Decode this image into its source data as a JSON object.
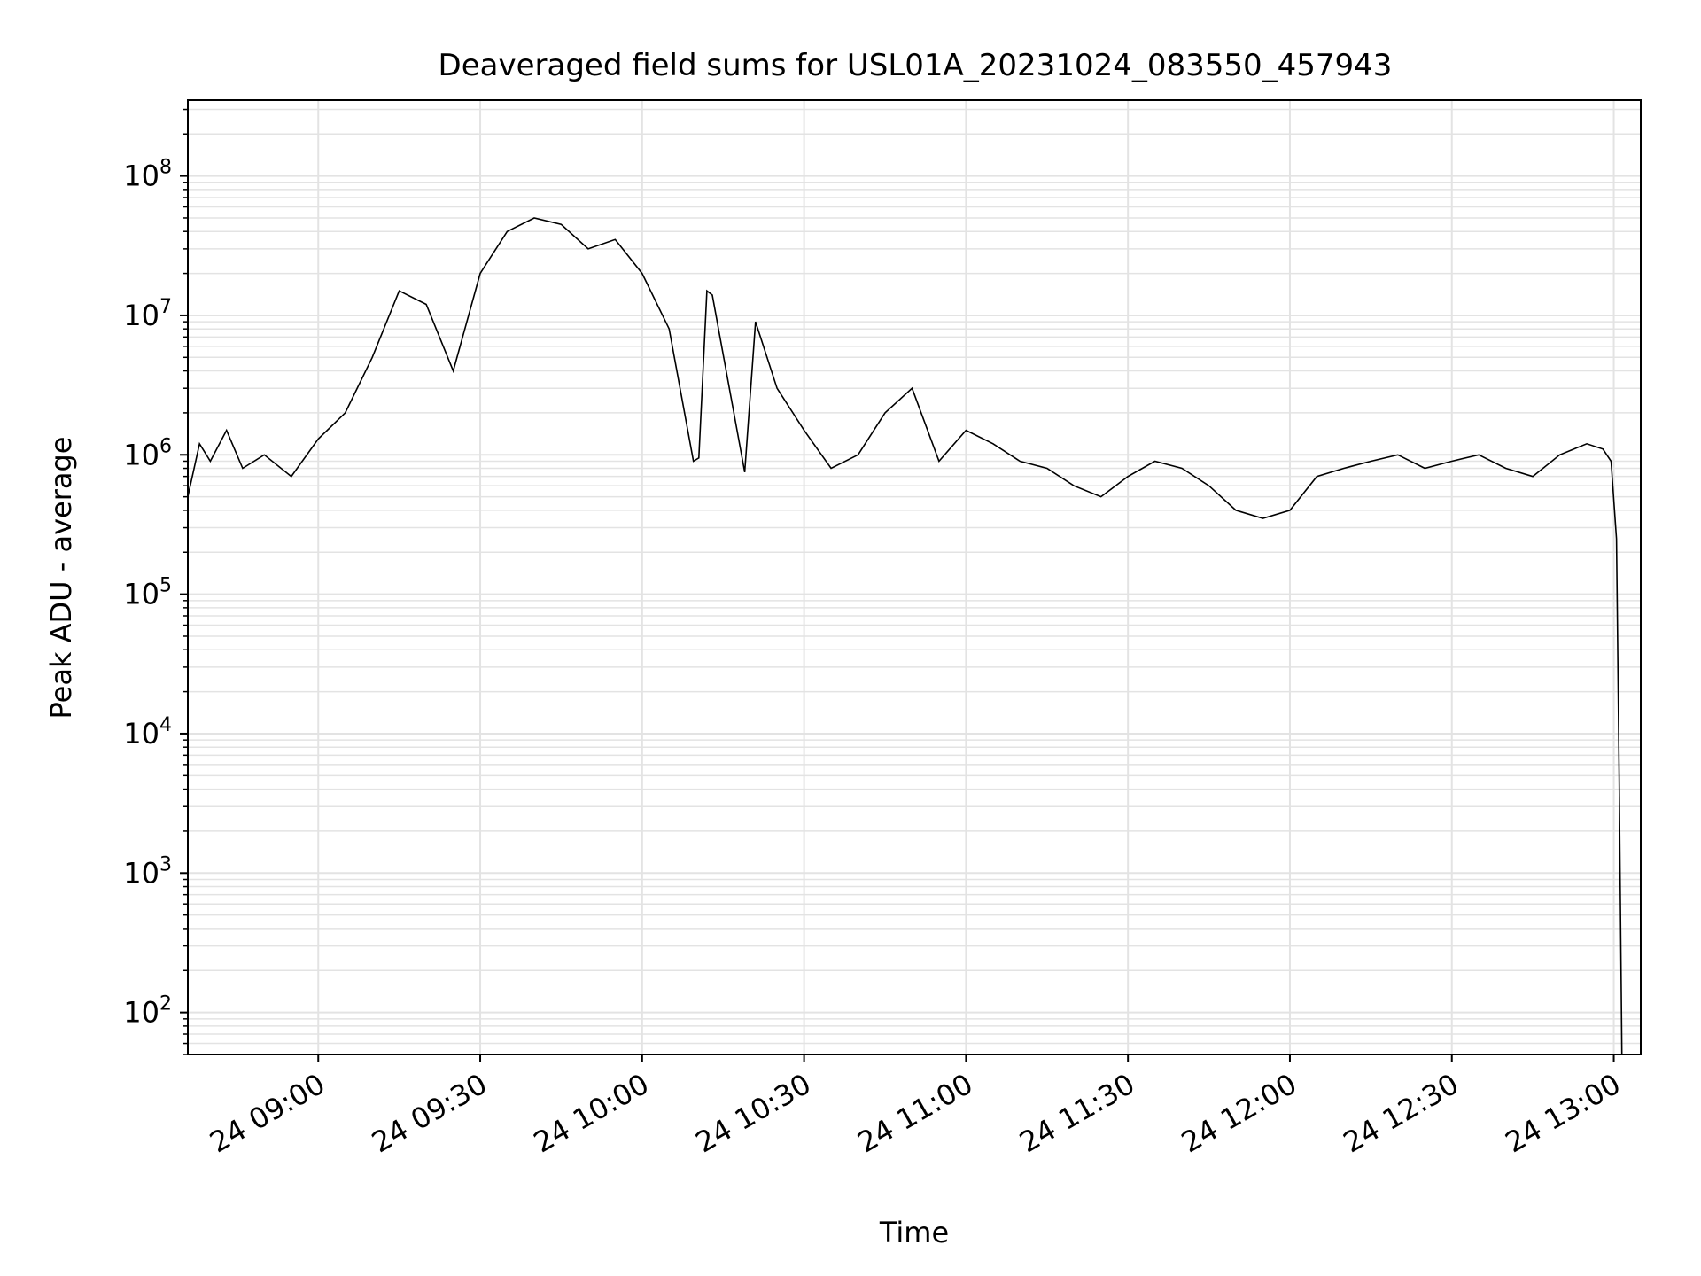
{
  "chart_data": {
    "type": "line",
    "title": "Deaveraged field sums for USL01A_20231024_083550_457943",
    "xlabel": "Time",
    "ylabel": "Peak ADU - average",
    "yscale": "log",
    "ylim": [
      50,
      350000000
    ],
    "xlim": [
      "2023-10-24 08:35:50",
      "2023-10-24 13:05:00"
    ],
    "grid": true,
    "line_color": "#000000",
    "x_ticks": [
      {
        "value": "2023-10-24 09:00",
        "label": "24 09:00"
      },
      {
        "value": "2023-10-24 09:30",
        "label": "24 09:30"
      },
      {
        "value": "2023-10-24 10:00",
        "label": "24 10:00"
      },
      {
        "value": "2023-10-24 10:30",
        "label": "24 10:30"
      },
      {
        "value": "2023-10-24 11:00",
        "label": "24 11:00"
      },
      {
        "value": "2023-10-24 11:30",
        "label": "24 11:30"
      },
      {
        "value": "2023-10-24 12:00",
        "label": "24 12:00"
      },
      {
        "value": "2023-10-24 12:30",
        "label": "24 12:30"
      },
      {
        "value": "2023-10-24 13:00",
        "label": "24 13:00"
      }
    ],
    "y_ticks": [
      {
        "value": 100,
        "base": "10",
        "exp": "2"
      },
      {
        "value": 1000,
        "base": "10",
        "exp": "3"
      },
      {
        "value": 10000,
        "base": "10",
        "exp": "4"
      },
      {
        "value": 100000,
        "base": "10",
        "exp": "5"
      },
      {
        "value": 1000000,
        "base": "10",
        "exp": "6"
      },
      {
        "value": 10000000,
        "base": "10",
        "exp": "7"
      },
      {
        "value": 100000000,
        "base": "10",
        "exp": "8"
      }
    ],
    "series": [
      {
        "x": [
          "2023-10-24 08:35:50",
          "2023-10-24 08:38:00",
          "2023-10-24 08:40:00",
          "2023-10-24 08:43:00",
          "2023-10-24 08:46:00",
          "2023-10-24 08:50:00",
          "2023-10-24 08:55:00",
          "2023-10-24 09:00:00",
          "2023-10-24 09:05:00",
          "2023-10-24 09:10:00",
          "2023-10-24 09:15:00",
          "2023-10-24 09:20:00",
          "2023-10-24 09:25:00",
          "2023-10-24 09:30:00",
          "2023-10-24 09:35:00",
          "2023-10-24 09:40:00",
          "2023-10-24 09:45:00",
          "2023-10-24 09:50:00",
          "2023-10-24 09:55:00",
          "2023-10-24 10:00:00",
          "2023-10-24 10:05:00",
          "2023-10-24 10:09:30",
          "2023-10-24 10:10:30",
          "2023-10-24 10:12:00",
          "2023-10-24 10:13:00",
          "2023-10-24 10:19:00",
          "2023-10-24 10:21:00",
          "2023-10-24 10:25:00",
          "2023-10-24 10:30:00",
          "2023-10-24 10:35:00",
          "2023-10-24 10:40:00",
          "2023-10-24 10:45:00",
          "2023-10-24 10:50:00",
          "2023-10-24 10:55:00",
          "2023-10-24 11:00:00",
          "2023-10-24 11:05:00",
          "2023-10-24 11:10:00",
          "2023-10-24 11:15:00",
          "2023-10-24 11:20:00",
          "2023-10-24 11:25:00",
          "2023-10-24 11:30:00",
          "2023-10-24 11:35:00",
          "2023-10-24 11:40:00",
          "2023-10-24 11:45:00",
          "2023-10-24 11:50:00",
          "2023-10-24 11:55:00",
          "2023-10-24 12:00:00",
          "2023-10-24 12:05:00",
          "2023-10-24 12:10:00",
          "2023-10-24 12:15:00",
          "2023-10-24 12:20:00",
          "2023-10-24 12:25:00",
          "2023-10-24 12:30:00",
          "2023-10-24 12:35:00",
          "2023-10-24 12:40:00",
          "2023-10-24 12:45:00",
          "2023-10-24 12:50:00",
          "2023-10-24 12:55:00",
          "2023-10-24 12:58:00",
          "2023-10-24 12:59:30",
          "2023-10-24 13:00:30",
          "2023-10-24 13:01:00",
          "2023-10-24 13:01:30"
        ],
        "y": [
          500000,
          1200000,
          900000,
          1500000,
          800000,
          1000000,
          700000,
          1300000,
          2000000,
          5000000,
          15000000,
          12000000,
          4000000,
          20000000,
          40000000,
          50000000,
          45000000,
          30000000,
          35000000,
          20000000,
          8000000,
          900000,
          950000,
          15000000,
          14000000,
          750000,
          9000000,
          3000000,
          1500000,
          800000,
          1000000,
          2000000,
          3000000,
          900000,
          1500000,
          1200000,
          900000,
          800000,
          600000,
          500000,
          700000,
          900000,
          800000,
          600000,
          400000,
          350000,
          400000,
          700000,
          800000,
          900000,
          1000000,
          800000,
          900000,
          1000000,
          800000,
          700000,
          1000000,
          1200000,
          1100000,
          900000,
          250000,
          5000,
          50
        ]
      }
    ]
  }
}
